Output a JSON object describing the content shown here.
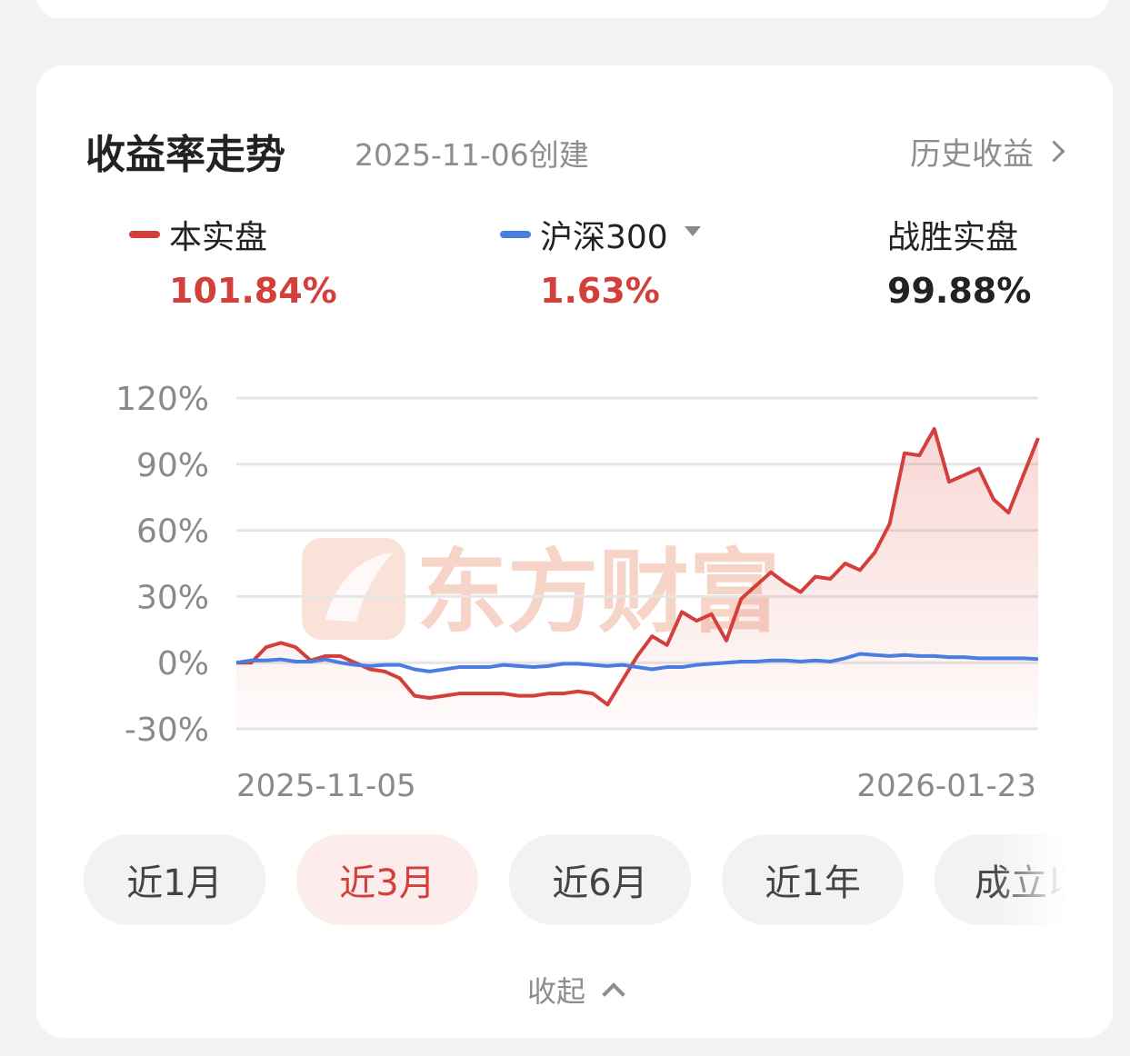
{
  "header": {
    "title": "收益率走势",
    "created": "2025-11-06创建",
    "history_link": "历史收益"
  },
  "legend": [
    {
      "name": "本实盘",
      "value": "101.84%",
      "color": "#d33f3a",
      "value_color": "#d33f3a"
    },
    {
      "name": "沪深300",
      "value": "1.63%",
      "color": "#4a7de0",
      "value_color": "#d33f3a",
      "has_dropdown": true
    },
    {
      "name": "战胜实盘",
      "value": "99.88%",
      "value_color": "#222222"
    }
  ],
  "watermark": {
    "text": "东方财富",
    "icon": "eastmoney-logo-icon"
  },
  "chart_data": {
    "type": "line",
    "y_unit": "%",
    "ylim": [
      -30,
      120
    ],
    "y_ticks": [
      "120%",
      "90%",
      "60%",
      "30%",
      "0%",
      "-30%"
    ],
    "x_tick_labels": [
      "2025-11-05",
      "2026-01-23"
    ],
    "grid": true,
    "series": [
      {
        "name": "本实盘",
        "color": "#d33f3a",
        "fill": true,
        "values": [
          0,
          0,
          7,
          9,
          7,
          1,
          3,
          3,
          0,
          -3,
          -4,
          -7,
          -15,
          -16,
          -15,
          -14,
          -14,
          -14,
          -14,
          -15,
          -15,
          -14,
          -14,
          -13,
          -14,
          -19,
          -8,
          3,
          12,
          8,
          23,
          19,
          22,
          10,
          29,
          35,
          41,
          36,
          32,
          39,
          38,
          45,
          42,
          50,
          63,
          95,
          94,
          106,
          82,
          85,
          88,
          74,
          68,
          85,
          101.84
        ]
      },
      {
        "name": "沪深300",
        "color": "#4a7de0",
        "fill": false,
        "values": [
          0,
          1,
          1,
          1.5,
          0.5,
          0.5,
          1.5,
          0,
          -1,
          -1.5,
          -1,
          -1,
          -3,
          -4,
          -3,
          -2,
          -2,
          -2,
          -1,
          -1.5,
          -2,
          -1.5,
          -0.5,
          -0.5,
          -1,
          -1.5,
          -1,
          -2,
          -3,
          -2,
          -2,
          -1,
          -0.5,
          0,
          0.5,
          0.5,
          1,
          1,
          0.5,
          1,
          0.5,
          2,
          4,
          3.5,
          3,
          3.5,
          3,
          3,
          2.5,
          2.5,
          2,
          2,
          2,
          2,
          1.63
        ]
      }
    ]
  },
  "periods": [
    {
      "label": "近1月",
      "active": false
    },
    {
      "label": "近3月",
      "active": true
    },
    {
      "label": "近6月",
      "active": false
    },
    {
      "label": "近1年",
      "active": false
    },
    {
      "label": "成立以来",
      "active": false
    }
  ],
  "collapse_label": "收起"
}
